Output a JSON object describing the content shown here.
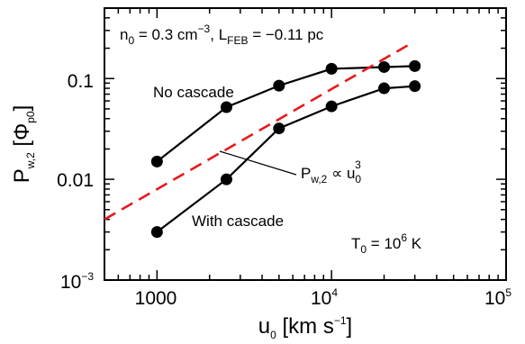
{
  "chart_data": {
    "type": "scatter",
    "xscale": "log",
    "yscale": "log",
    "xlim": [
      500,
      100000
    ],
    "ylim": [
      0.001,
      0.5
    ],
    "xlabel": {
      "main": "u",
      "sub": "0",
      "rest": " [km s",
      "sup": "−1",
      "end": "]"
    },
    "ylabel": {
      "main": "P",
      "sub": "w,2",
      "rest": " [Φ",
      "sub2": "p0",
      "end": "]"
    },
    "x_ticks": [
      {
        "value": 1000,
        "label": "1000"
      },
      {
        "value": 10000,
        "base": "10",
        "exp": "4"
      },
      {
        "value": 100000,
        "base": "10",
        "exp": "5"
      }
    ],
    "y_ticks": [
      {
        "value": 0.001,
        "base": "10",
        "exp": "−3"
      },
      {
        "value": 0.01,
        "label": "0.01"
      },
      {
        "value": 0.1,
        "label": "0.1"
      }
    ],
    "series": [
      {
        "name": "No cascade",
        "color": "#000000",
        "style": "line+markers",
        "x": [
          1000,
          2500,
          5000,
          10000,
          20000,
          30000
        ],
        "y": [
          0.015,
          0.052,
          0.085,
          0.125,
          0.13,
          0.133
        ]
      },
      {
        "name": "With cascade",
        "color": "#000000",
        "style": "line+markers",
        "x": [
          1000,
          2500,
          5000,
          10000,
          20000,
          30000
        ],
        "y": [
          0.003,
          0.01,
          0.032,
          0.053,
          0.08,
          0.084
        ]
      },
      {
        "name": "u0^3 scaling",
        "color": "#e41a1c",
        "style": "dashed",
        "x": [
          500,
          28800
        ],
        "y": [
          0.004,
          0.225
        ]
      }
    ],
    "annotations": {
      "params": {
        "n": "n",
        "n_sub": "0",
        "n_val": " = 0.3 cm",
        "n_sup": "−3",
        "sep": ", ",
        "L": "L",
        "L_sub": "FEB",
        "L_val": " = −0.11 pc"
      },
      "no_cascade": "No cascade",
      "with_cascade": "With cascade",
      "scaling": {
        "P": "P",
        "P_sub": "w,2",
        "mid": " ∝ u",
        "u_sub": "0",
        "u_sup": "3"
      },
      "temperature": {
        "T": "T",
        "T_sub": "0",
        "mid": " = 10",
        "sup": "6",
        "end": " K"
      }
    }
  }
}
